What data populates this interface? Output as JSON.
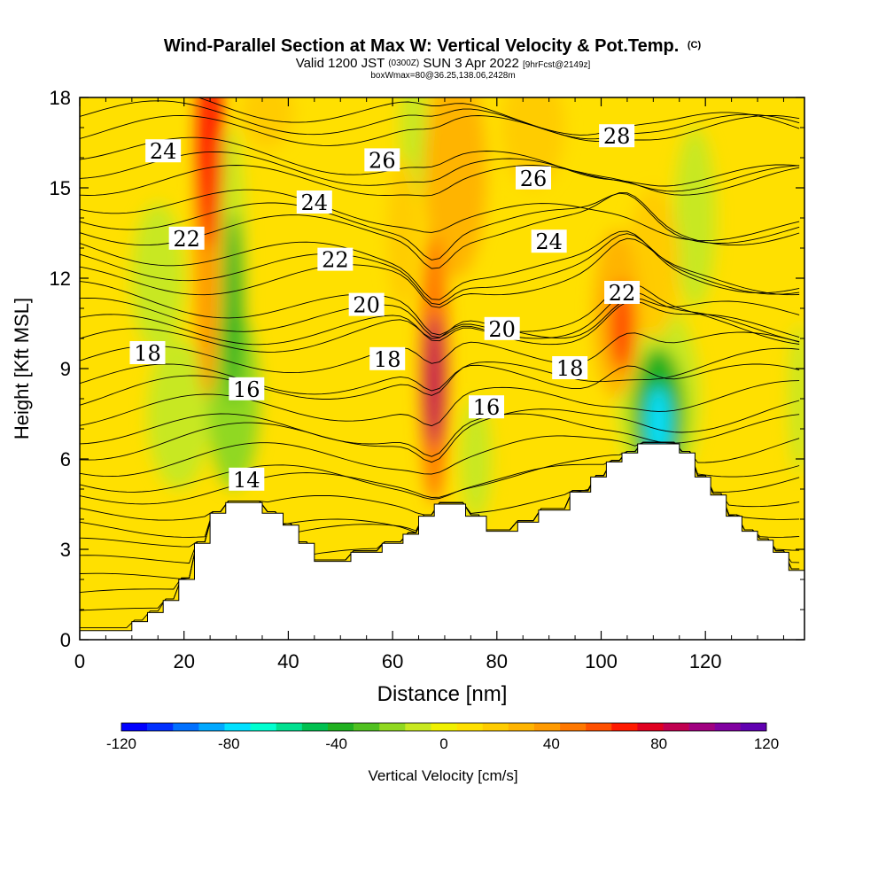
{
  "chart_data": {
    "type": "heatmap",
    "title": "Wind-Parallel Section at Max W: Vertical Velocity & Pot.Temp.",
    "title_mark": "(C)",
    "subtitle_parts": [
      "Valid 1200 JST ",
      "(0300Z)",
      " SUN 3 Apr 2022 ",
      "[9hrFcst@2149z]"
    ],
    "subtitle2": "boxWmax=80@36.25,138.06,2428m",
    "xlabel": "Distance [nm]",
    "ylabel": "Height [Kft MSL]",
    "xlim": [
      0,
      139
    ],
    "ylim": [
      0,
      18
    ],
    "x_ticks": [
      "0",
      "20",
      "40",
      "60",
      "80",
      "100",
      "120"
    ],
    "y_ticks": [
      "0",
      "3",
      "6",
      "9",
      "12",
      "15",
      "18"
    ],
    "colorbar": {
      "label": "Vertical Velocity [cm/s]",
      "range": [
        -120,
        120
      ],
      "tick_labels": [
        "-120",
        "-80",
        "-40",
        "0",
        "40",
        "80",
        "120"
      ],
      "colors": [
        "#0000ff",
        "#0030ff",
        "#0070ff",
        "#00a8ff",
        "#00e0ff",
        "#00ffd0",
        "#00e090",
        "#00c050",
        "#20b020",
        "#50c020",
        "#90d820",
        "#c8e820",
        "#f0f000",
        "#ffe000",
        "#ffcc00",
        "#ffb400",
        "#ff9a00",
        "#ff7800",
        "#ff5000",
        "#ff1a00",
        "#e00020",
        "#c00050",
        "#a00080",
        "#8000a0",
        "#6000b0"
      ]
    },
    "contour_variable": "Potential temperature [C]",
    "contour_labels": [
      {
        "value": "24",
        "x": 16,
        "y": 16.2
      },
      {
        "value": "22",
        "x": 20.5,
        "y": 13.3
      },
      {
        "value": "18",
        "x": 13,
        "y": 9.5
      },
      {
        "value": "16",
        "x": 32,
        "y": 8.3
      },
      {
        "value": "14",
        "x": 32,
        "y": 5.3
      },
      {
        "value": "24",
        "x": 45,
        "y": 14.5
      },
      {
        "value": "22",
        "x": 49,
        "y": 12.6
      },
      {
        "value": "20",
        "x": 55,
        "y": 11.1
      },
      {
        "value": "18",
        "x": 59,
        "y": 9.3
      },
      {
        "value": "26",
        "x": 58,
        "y": 15.9
      },
      {
        "value": "16",
        "x": 78,
        "y": 7.7
      },
      {
        "value": "20",
        "x": 81,
        "y": 10.3
      },
      {
        "value": "26",
        "x": 87,
        "y": 15.3
      },
      {
        "value": "24",
        "x": 90,
        "y": 13.2
      },
      {
        "value": "18",
        "x": 94,
        "y": 9.0
      },
      {
        "value": "22",
        "x": 104,
        "y": 11.5
      },
      {
        "value": "28",
        "x": 103,
        "y": 16.7
      }
    ],
    "terrain": [
      [
        0,
        0.3
      ],
      [
        10,
        0.3
      ],
      [
        10,
        0.6
      ],
      [
        13,
        0.6
      ],
      [
        13,
        0.9
      ],
      [
        16,
        0.9
      ],
      [
        16,
        1.3
      ],
      [
        19,
        1.3
      ],
      [
        19,
        2
      ],
      [
        22,
        2
      ],
      [
        22,
        3.2
      ],
      [
        25,
        3.2
      ],
      [
        25,
        4.2
      ],
      [
        28,
        4.2
      ],
      [
        28,
        4.55
      ],
      [
        35,
        4.55
      ],
      [
        35,
        4.2
      ],
      [
        39,
        4.2
      ],
      [
        39,
        3.8
      ],
      [
        42,
        3.8
      ],
      [
        42,
        3.2
      ],
      [
        45,
        3.2
      ],
      [
        45,
        2.6
      ],
      [
        52,
        2.6
      ],
      [
        52,
        2.9
      ],
      [
        58,
        2.9
      ],
      [
        58,
        3.2
      ],
      [
        62,
        3.2
      ],
      [
        62,
        3.5
      ],
      [
        65,
        3.5
      ],
      [
        65,
        4.1
      ],
      [
        68,
        4.1
      ],
      [
        68,
        4.5
      ],
      [
        74,
        4.5
      ],
      [
        74,
        4.1
      ],
      [
        78,
        4.1
      ],
      [
        78,
        3.6
      ],
      [
        84,
        3.6
      ],
      [
        84,
        3.9
      ],
      [
        88,
        3.9
      ],
      [
        88,
        4.3
      ],
      [
        94,
        4.3
      ],
      [
        94,
        4.9
      ],
      [
        98,
        4.9
      ],
      [
        98,
        5.4
      ],
      [
        101,
        5.4
      ],
      [
        101,
        5.9
      ],
      [
        104,
        5.9
      ],
      [
        104,
        6.2
      ],
      [
        107,
        6.2
      ],
      [
        107,
        6.5
      ],
      [
        115,
        6.5
      ],
      [
        115,
        6.2
      ],
      [
        118,
        6.2
      ],
      [
        118,
        5.4
      ],
      [
        121,
        5.4
      ],
      [
        121,
        4.8
      ],
      [
        124,
        4.8
      ],
      [
        124,
        4.1
      ],
      [
        127,
        4.1
      ],
      [
        127,
        3.6
      ],
      [
        130,
        3.6
      ],
      [
        130,
        3.3
      ],
      [
        133,
        3.3
      ],
      [
        133,
        2.9
      ],
      [
        136,
        2.9
      ],
      [
        136,
        2.3
      ],
      [
        139,
        2.3
      ],
      [
        139,
        0
      ],
      [
        0,
        0
      ]
    ],
    "wv_features": [
      {
        "x": 25,
        "y": 16.5,
        "rx": 2.5,
        "ry": 3.5,
        "v": 65
      },
      {
        "x": 24.5,
        "y": 13,
        "rx": 2.5,
        "ry": 5,
        "v": 40
      },
      {
        "x": 68,
        "y": 8.6,
        "rx": 1.8,
        "ry": 2.2,
        "v": 85
      },
      {
        "x": 68,
        "y": 9,
        "rx": 2.8,
        "ry": 4.5,
        "v": 45
      },
      {
        "x": 104,
        "y": 10.4,
        "rx": 2.5,
        "ry": 1.5,
        "v": 60
      },
      {
        "x": 103,
        "y": 10.8,
        "rx": 4.5,
        "ry": 2.8,
        "v": 30
      },
      {
        "x": 72,
        "y": 15.5,
        "rx": 6,
        "ry": 3.5,
        "v": 25
      },
      {
        "x": 87,
        "y": 17,
        "rx": 6,
        "ry": 2,
        "v": 22
      },
      {
        "x": 36,
        "y": 17.5,
        "rx": 5,
        "ry": 1.2,
        "v": 20
      },
      {
        "x": 110,
        "y": 12.5,
        "rx": 5,
        "ry": 2.5,
        "v": 18
      },
      {
        "x": 62,
        "y": 13.5,
        "rx": 3,
        "ry": 2.5,
        "v": 15
      },
      {
        "x": 29.5,
        "y": 11,
        "rx": 1.8,
        "ry": 3.2,
        "v": -35
      },
      {
        "x": 29.5,
        "y": 8,
        "rx": 5,
        "ry": 3,
        "v": -15
      },
      {
        "x": 29,
        "y": 12,
        "rx": 3,
        "ry": 5,
        "v": -12
      },
      {
        "x": 19,
        "y": 7.5,
        "rx": 6,
        "ry": 2.5,
        "v": -10
      },
      {
        "x": 111,
        "y": 7.5,
        "rx": 5,
        "ry": 2.2,
        "v": -40
      },
      {
        "x": 111,
        "y": 7.2,
        "rx": 2.2,
        "ry": 1.2,
        "v": -75
      },
      {
        "x": 111,
        "y": 8,
        "rx": 8,
        "ry": 3.2,
        "v": -12
      },
      {
        "x": 76,
        "y": 6,
        "rx": 3,
        "ry": 2,
        "v": -12
      },
      {
        "x": 64,
        "y": 17,
        "rx": 2.5,
        "ry": 2.5,
        "v": -8
      },
      {
        "x": 118,
        "y": 14,
        "rx": 4,
        "ry": 3,
        "v": -8
      },
      {
        "x": 15,
        "y": 12,
        "rx": 5,
        "ry": 2.5,
        "v": -6
      },
      {
        "x": 138,
        "y": 8,
        "rx": 2,
        "ry": 2.5,
        "v": -10
      }
    ]
  }
}
